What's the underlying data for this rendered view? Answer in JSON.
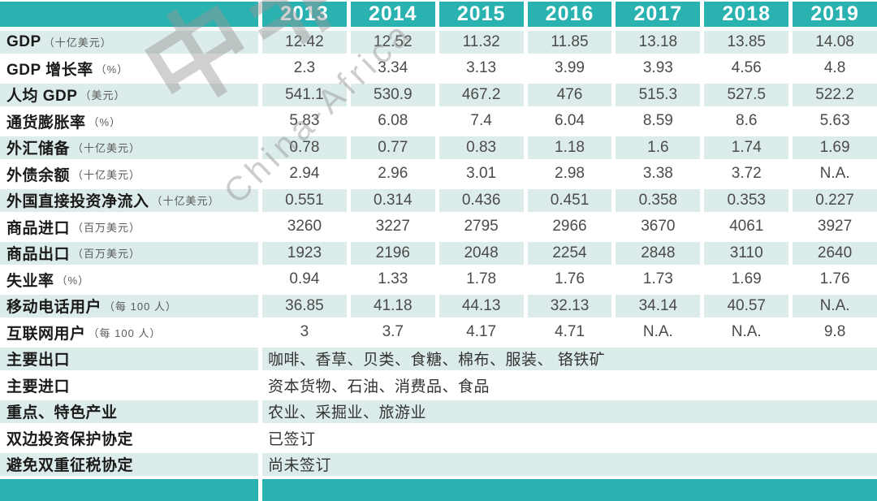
{
  "header": {
    "years": [
      "2013",
      "2014",
      "2015",
      "2016",
      "2017",
      "2018",
      "2019"
    ]
  },
  "indicator_rows": [
    {
      "label": "GDP",
      "unit": "（十亿美元）",
      "values": [
        "12.42",
        "12.52",
        "11.32",
        "11.85",
        "13.18",
        "13.85",
        "14.08"
      ]
    },
    {
      "label": "GDP 增长率",
      "unit": "（%）",
      "values": [
        "2.3",
        "3.34",
        "3.13",
        "3.99",
        "3.93",
        "4.56",
        "4.8"
      ]
    },
    {
      "label": "人均 GDP",
      "unit": "（美元）",
      "values": [
        "541.1",
        "530.9",
        "467.2",
        "476",
        "515.3",
        "527.5",
        "522.2"
      ]
    },
    {
      "label": "通货膨胀率",
      "unit": "（%）",
      "values": [
        "5.83",
        "6.08",
        "7.4",
        "6.04",
        "8.59",
        "8.6",
        "5.63"
      ]
    },
    {
      "label": "外汇储备",
      "unit": "（十亿美元）",
      "values": [
        "0.78",
        "0.77",
        "0.83",
        "1.18",
        "1.6",
        "1.74",
        "1.69"
      ]
    },
    {
      "label": "外债余额",
      "unit": "（十亿美元）",
      "values": [
        "2.94",
        "2.96",
        "3.01",
        "2.98",
        "3.38",
        "3.72",
        "N.A."
      ]
    },
    {
      "label": "外国直接投资净流入",
      "unit": "（十亿美元）",
      "values": [
        "0.551",
        "0.314",
        "0.436",
        "0.451",
        "0.358",
        "0.353",
        "0.227"
      ]
    },
    {
      "label": "商品进口",
      "unit": "（百万美元）",
      "values": [
        "3260",
        "3227",
        "2795",
        "2966",
        "3670",
        "4061",
        "3927"
      ]
    },
    {
      "label": "商品出口",
      "unit": "（百万美元）",
      "values": [
        "1923",
        "2196",
        "2048",
        "2254",
        "2848",
        "3110",
        "2640"
      ]
    },
    {
      "label": "失业率",
      "unit": "（%）",
      "values": [
        "0.94",
        "1.33",
        "1.78",
        "1.76",
        "1.73",
        "1.69",
        "1.76"
      ]
    },
    {
      "label": "移动电话用户",
      "unit": "（每 100 人）",
      "values": [
        "36.85",
        "41.18",
        "44.13",
        "32.13",
        "34.14",
        "40.57",
        "N.A."
      ]
    },
    {
      "label": "互联网用户",
      "unit": "（每 100 人）",
      "values": [
        "3",
        "3.7",
        "4.17",
        "4.71",
        "N.A.",
        "N.A.",
        "9.8"
      ]
    }
  ],
  "text_rows": [
    {
      "label": "主要出口",
      "value": "咖啡、香草、贝类、食糖、棉布、服装、 铬铁矿"
    },
    {
      "label": "主要进口",
      "value": "资本货物、石油、消费品、食品"
    },
    {
      "label": "重点、特色产业",
      "value": "农业、采掘业、旅游业"
    },
    {
      "label": "双边投资保护协定",
      "value": "已签订"
    },
    {
      "label": "避免双重征税协定",
      "value": "尚未签订"
    }
  ],
  "watermark": {
    "logo_text": "中非",
    "latin_text": "China-Africa"
  },
  "colors": {
    "accent_teal": "#2ab2b0",
    "row_light": "#dcecea",
    "value_text": "#4b4b4b",
    "label_text": "#1a1a1a",
    "header_text": "#ffffff"
  }
}
